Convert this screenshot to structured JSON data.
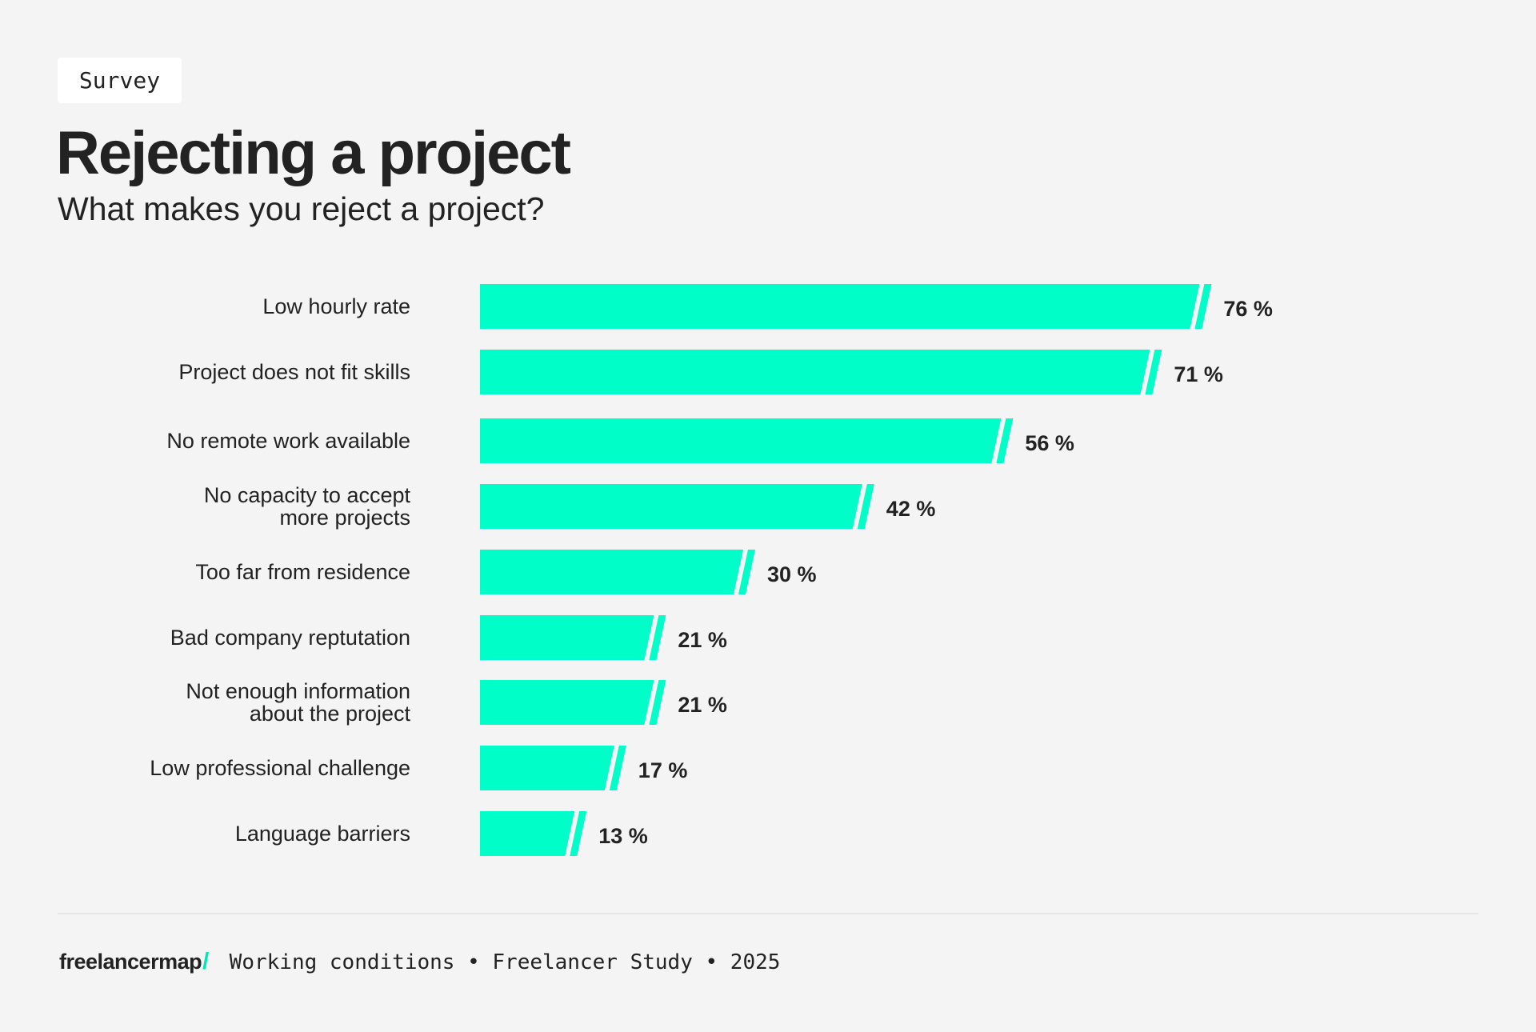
{
  "badge": "Survey",
  "title": "Rejecting a project",
  "subtitle": "What makes you reject a project?",
  "colors": {
    "bar": "#00ffc8",
    "background": "#f4f4f4",
    "text": "#222222"
  },
  "chart_data": {
    "type": "bar",
    "orientation": "horizontal",
    "title": "Rejecting a project",
    "subtitle": "What makes you reject a project?",
    "categories": [
      [
        "Low hourly rate"
      ],
      [
        "Project does not fit skills"
      ],
      [
        "No remote work available"
      ],
      [
        "No capacity to accept",
        "more projects"
      ],
      [
        "Too far from residence"
      ],
      [
        "Bad company reptutation"
      ],
      [
        "Not enough information",
        "about the project"
      ],
      [
        "Low professional challenge"
      ],
      [
        "Language barriers"
      ]
    ],
    "values": [
      76,
      71,
      56,
      42,
      30,
      21,
      21,
      17,
      13
    ],
    "value_labels": [
      "76 %",
      "71 %",
      "56 %",
      "42 %",
      "30 %",
      "21 %",
      "21 %",
      "17 %",
      "13 %"
    ],
    "unit": "%",
    "grid": false,
    "legend": "none"
  },
  "footer": {
    "logo": "freelancermap",
    "logo_mark": "/",
    "text": "Working conditions • Freelancer Study • 2025"
  }
}
